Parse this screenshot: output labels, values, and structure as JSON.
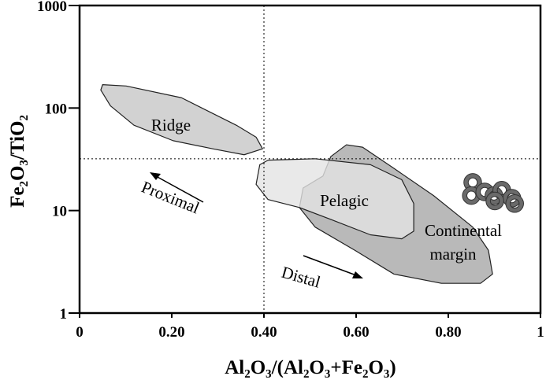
{
  "chart_data": {
    "type": "scatter",
    "xlabel": "Al₂O₃/(Al₂O₃+Fe₂O₃)",
    "ylabel": "Fe₂O₃/TiO₂",
    "xlim": [
      0,
      1
    ],
    "ylim": [
      1,
      1000
    ],
    "yscale": "log",
    "grid": false,
    "xticks": [
      {
        "v": 0,
        "label": "0"
      },
      {
        "v": 0.2,
        "label": "0.20"
      },
      {
        "v": 0.4,
        "label": "0.40"
      },
      {
        "v": 0.6,
        "label": "0.60"
      },
      {
        "v": 0.8,
        "label": "0.80"
      },
      {
        "v": 1,
        "label": "1"
      }
    ],
    "yticks": [
      {
        "v": 1,
        "label": "1"
      },
      {
        "v": 10,
        "label": "10"
      },
      {
        "v": 100,
        "label": "100"
      },
      {
        "v": 1000,
        "label": "1000"
      }
    ],
    "reference_lines": {
      "x": 0.4,
      "y": 32
    },
    "regions": [
      {
        "name": "Continental margin",
        "label_lines": [
          "Continental",
          "margin"
        ],
        "fill": "#b9b9b9",
        "points": [
          [
            0.545,
            33.6
          ],
          [
            0.579,
            43.8
          ],
          [
            0.614,
            41.5
          ],
          [
            0.682,
            25.8
          ],
          [
            0.768,
            14
          ],
          [
            0.853,
            6.9
          ],
          [
            0.887,
            4.1
          ],
          [
            0.896,
            2.4
          ],
          [
            0.87,
            1.95
          ],
          [
            0.785,
            1.95
          ],
          [
            0.682,
            2.4
          ],
          [
            0.597,
            4.1
          ],
          [
            0.511,
            6.9
          ],
          [
            0.477,
            10.7
          ],
          [
            0.485,
            16.6
          ],
          [
            0.528,
            21.7
          ]
        ]
      },
      {
        "name": "Pelagic",
        "label_lines": [
          "Pelagic"
        ],
        "fill": "#e4e4e4",
        "points": [
          [
            0.391,
            28
          ],
          [
            0.409,
            31
          ],
          [
            0.511,
            32
          ],
          [
            0.631,
            28
          ],
          [
            0.699,
            20
          ],
          [
            0.725,
            11.7
          ],
          [
            0.725,
            6.3
          ],
          [
            0.699,
            5.3
          ],
          [
            0.631,
            5.8
          ],
          [
            0.545,
            8.2
          ],
          [
            0.477,
            10.7
          ],
          [
            0.409,
            12.8
          ],
          [
            0.383,
            18
          ]
        ]
      },
      {
        "name": "Ridge",
        "label_lines": [
          "Ridge"
        ],
        "fill": "#d2d2d2",
        "points": [
          [
            0.05,
            169
          ],
          [
            0.101,
            164
          ],
          [
            0.221,
            126
          ],
          [
            0.34,
            68
          ],
          [
            0.383,
            52
          ],
          [
            0.397,
            40
          ],
          [
            0.357,
            35
          ],
          [
            0.289,
            40
          ],
          [
            0.203,
            48
          ],
          [
            0.118,
            68
          ],
          [
            0.067,
            105
          ],
          [
            0.046,
            150
          ]
        ]
      }
    ],
    "annotations": [
      {
        "text": "Proximal",
        "direction": "toward lower Al₂O₃/(Al₂O₃+Fe₂O₃), higher Fe₂O₃/TiO₂"
      },
      {
        "text": "Distal",
        "direction": "toward higher Al₂O₃/(Al₂O₃+Fe₂O₃), lower Fe₂O₃/TiO₂"
      }
    ],
    "points": {
      "marker": "ring",
      "color": "#6a6a6a",
      "x": [
        0.853,
        0.85,
        0.879,
        0.899,
        0.916,
        0.938,
        0.944,
        0.901
      ],
      "y": [
        18.8,
        14,
        15.2,
        14,
        15.8,
        13.2,
        11.7,
        12.4
      ]
    }
  }
}
